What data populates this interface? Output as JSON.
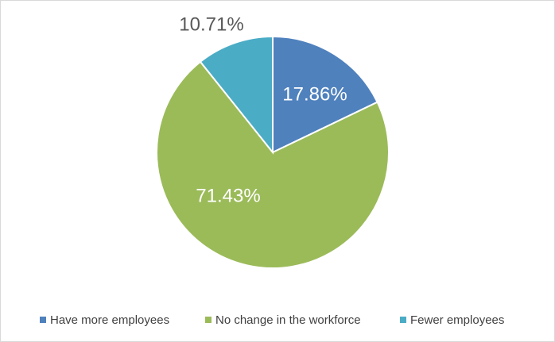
{
  "chart_data": {
    "type": "pie",
    "categories": [
      "Have more employees",
      "No change in the workforce",
      "Fewer employees"
    ],
    "values": [
      17.86,
      71.43,
      10.71
    ],
    "value_labels": [
      "17.86%",
      "71.43%",
      "10.71%"
    ],
    "colors": [
      "#4f81bd",
      "#9bbb59",
      "#4bacc6"
    ],
    "legend": "bottom"
  }
}
